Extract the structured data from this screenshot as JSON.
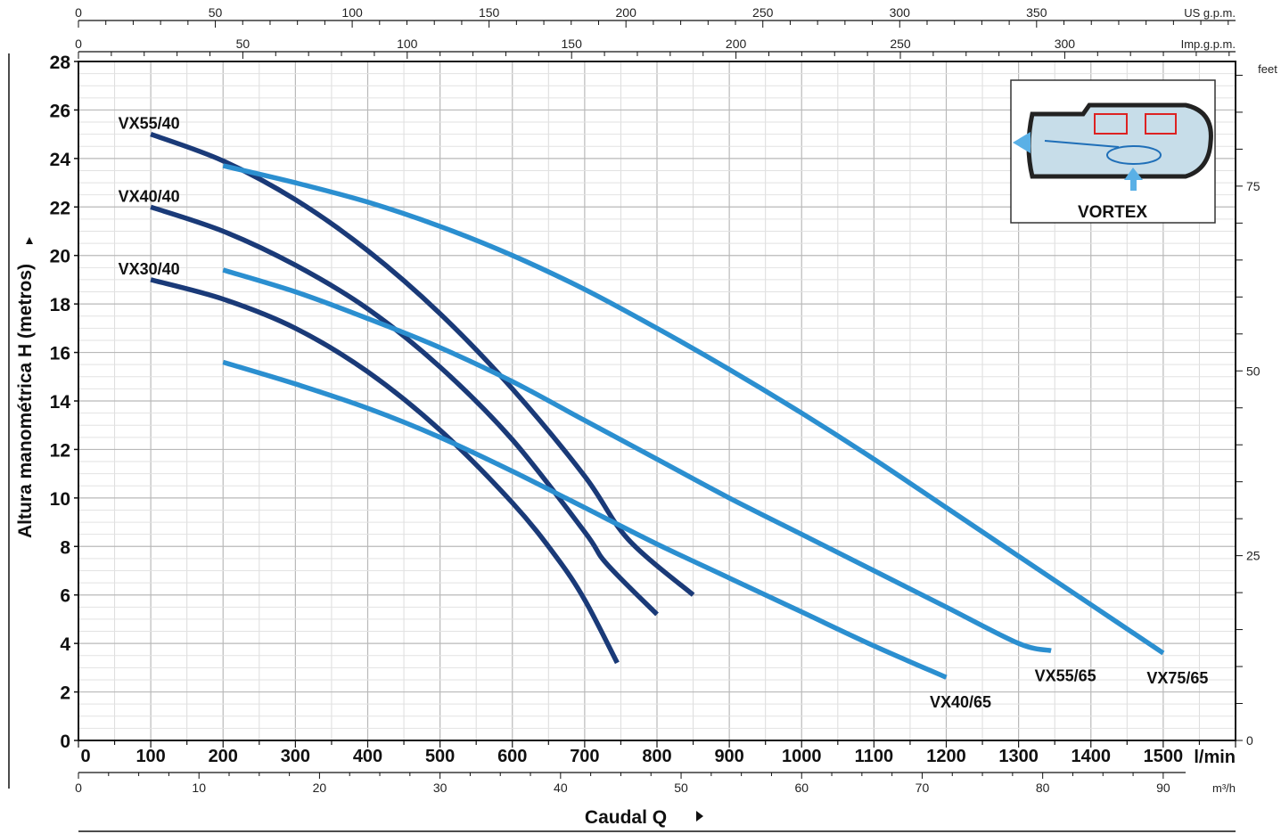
{
  "chart_data": {
    "type": "line",
    "ylabel": "Altura manométrica H (metros)",
    "xlabel": "Caudal Q",
    "x_unit": "l/min",
    "xlim": [
      0,
      1600
    ],
    "ylim": [
      0,
      28
    ],
    "x_ticks": [
      0,
      100,
      200,
      300,
      400,
      500,
      600,
      700,
      800,
      900,
      1000,
      1100,
      1200,
      1300,
      1400,
      1500
    ],
    "y_ticks": [
      0,
      2,
      4,
      6,
      8,
      10,
      12,
      14,
      16,
      18,
      20,
      22,
      24,
      26,
      28
    ],
    "grid": true,
    "secondary_axes": {
      "us_gpm": {
        "unit": "US g.p.m.",
        "ticks": [
          0,
          50,
          100,
          150,
          200,
          250,
          300,
          350
        ]
      },
      "imp_gpm": {
        "unit": "Imp.g.p.m.",
        "ticks": [
          0,
          50,
          100,
          150,
          200,
          250,
          300
        ]
      },
      "feet": {
        "unit": "feet",
        "ticks": [
          0,
          25,
          50,
          75
        ]
      },
      "m3h": {
        "unit": "m³/h",
        "ticks": [
          0,
          10,
          20,
          30,
          40,
          50,
          60,
          70,
          80,
          90
        ]
      }
    },
    "series": [
      {
        "name": "VX55/40",
        "color": "#1a3a78",
        "points": [
          [
            100,
            25
          ],
          [
            200,
            23.9
          ],
          [
            300,
            22.3
          ],
          [
            400,
            20.2
          ],
          [
            500,
            17.6
          ],
          [
            600,
            14.5
          ],
          [
            700,
            10.9
          ],
          [
            760,
            8.3
          ],
          [
            850,
            6
          ]
        ]
      },
      {
        "name": "VX40/40",
        "color": "#1a3a78",
        "points": [
          [
            100,
            22
          ],
          [
            200,
            21
          ],
          [
            300,
            19.6
          ],
          [
            400,
            17.8
          ],
          [
            500,
            15.4
          ],
          [
            600,
            12.4
          ],
          [
            700,
            8.6
          ],
          [
            730,
            7.3
          ],
          [
            800,
            5.2
          ]
        ]
      },
      {
        "name": "VX30/40",
        "color": "#1a3a78",
        "points": [
          [
            100,
            19
          ],
          [
            200,
            18.2
          ],
          [
            300,
            17
          ],
          [
            400,
            15.2
          ],
          [
            500,
            12.8
          ],
          [
            600,
            9.8
          ],
          [
            660,
            7.6
          ],
          [
            700,
            5.8
          ],
          [
            745,
            3.2
          ]
        ]
      },
      {
        "name": "VX75/65",
        "color": "#2b8fd0",
        "points": [
          [
            200,
            23.7
          ],
          [
            300,
            23
          ],
          [
            400,
            22.2
          ],
          [
            500,
            21.2
          ],
          [
            600,
            20
          ],
          [
            700,
            18.6
          ],
          [
            800,
            17
          ],
          [
            900,
            15.3
          ],
          [
            1000,
            13.5
          ],
          [
            1100,
            11.6
          ],
          [
            1200,
            9.6
          ],
          [
            1300,
            7.6
          ],
          [
            1400,
            5.6
          ],
          [
            1500,
            3.6
          ]
        ]
      },
      {
        "name": "VX55/65",
        "color": "#2b8fd0",
        "points": [
          [
            200,
            19.4
          ],
          [
            300,
            18.5
          ],
          [
            400,
            17.4
          ],
          [
            500,
            16.2
          ],
          [
            600,
            14.8
          ],
          [
            700,
            13.2
          ],
          [
            800,
            11.6
          ],
          [
            900,
            10
          ],
          [
            1000,
            8.5
          ],
          [
            1100,
            7
          ],
          [
            1200,
            5.5
          ],
          [
            1300,
            4
          ],
          [
            1345,
            3.7
          ]
        ]
      },
      {
        "name": "VX40/65",
        "color": "#2b8fd0",
        "points": [
          [
            200,
            15.6
          ],
          [
            300,
            14.7
          ],
          [
            400,
            13.7
          ],
          [
            500,
            12.5
          ],
          [
            600,
            11.1
          ],
          [
            700,
            9.6
          ],
          [
            800,
            8.1
          ],
          [
            900,
            6.7
          ],
          [
            1000,
            5.3
          ],
          [
            1100,
            3.9
          ],
          [
            1200,
            2.6
          ]
        ]
      }
    ],
    "annotations": [
      "VORTEX"
    ]
  }
}
